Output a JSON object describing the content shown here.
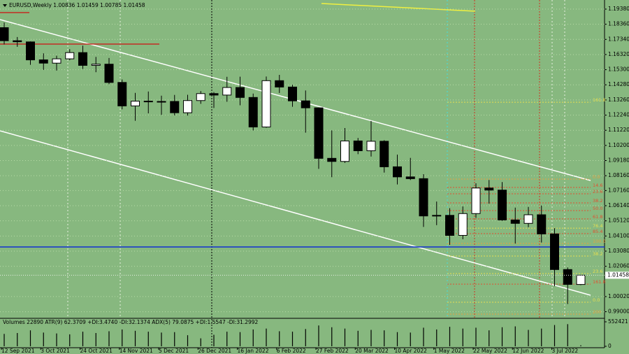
{
  "chart_data": {
    "type": "candlestick",
    "title": "EURUSD,Weekly  1.00836 1.01459 1.00785 1.01458",
    "categories": [
      "12 Sep 2021",
      null,
      null,
      "3 Oct 2021",
      null,
      null,
      "24 Oct 2021",
      null,
      null,
      "14 Nov 2021",
      null,
      null,
      "5 Dec 2021",
      null,
      null,
      "26 Dec 2021",
      null,
      null,
      "16 Jan 2022",
      null,
      null,
      "6 Feb 2022",
      null,
      null,
      "27 Feb 2022",
      null,
      null,
      "20 Mar 2022",
      null,
      null,
      "10 Apr 2022",
      null,
      null,
      "1 May 2022",
      null,
      null,
      "22 May 2022",
      null,
      null,
      "12 Jun 2022",
      null,
      null,
      "3 Jul 2022",
      null,
      null
    ],
    "open": [
      1.1813,
      1.1725,
      1.1717,
      1.1596,
      1.1574,
      1.1603,
      1.1645,
      1.1559,
      1.1567,
      1.1444,
      1.1286,
      1.1318,
      1.1314,
      1.1316,
      1.124,
      1.1322,
      1.1369,
      1.1359,
      1.141,
      1.1343,
      1.1144,
      1.1456,
      1.1413,
      1.132,
      1.1273,
      1.0933,
      1.0912,
      1.105,
      1.0984,
      1.1048,
      1.0876,
      1.0808,
      1.0796,
      1.0545,
      1.0549,
      1.0414,
      1.0561,
      1.0733,
      1.0719,
      1.0518,
      1.0495,
      1.0553,
      1.0424,
      1.0184,
      1.00836
    ],
    "high": [
      1.1847,
      1.175,
      1.172,
      1.164,
      1.1624,
      1.1668,
      1.1692,
      1.1616,
      1.1609,
      1.1464,
      1.1374,
      1.1383,
      1.1355,
      1.136,
      1.1361,
      1.1386,
      1.1379,
      1.1482,
      1.1483,
      1.1369,
      1.1484,
      1.1495,
      1.1428,
      1.139,
      1.1275,
      1.1121,
      1.1137,
      1.107,
      1.1185,
      1.1055,
      1.0958,
      1.0936,
      1.0826,
      1.0642,
      1.0597,
      1.0609,
      1.0765,
      1.0787,
      1.0773,
      1.0601,
      1.0606,
      1.0615,
      1.0463,
      1.0198,
      1.01459
    ],
    "low": [
      1.17,
      1.1684,
      1.1563,
      1.1529,
      1.1524,
      1.1594,
      1.1535,
      1.1513,
      1.1432,
      1.1263,
      1.1186,
      1.1236,
      1.1226,
      1.1222,
      1.1221,
      1.13,
      1.1272,
      1.1314,
      1.129,
      1.1121,
      1.1139,
      1.1373,
      1.128,
      1.1106,
      1.0862,
      1.0806,
      1.0902,
      1.0961,
      1.0945,
      1.0837,
      1.0757,
      1.0787,
      1.0471,
      1.0483,
      1.035,
      1.0388,
      1.0532,
      1.0628,
      1.0513,
      1.0359,
      1.0469,
      1.0366,
      1.0072,
      0.9952,
      1.00785
    ],
    "close": [
      1.1725,
      1.1718,
      1.1596,
      1.1574,
      1.1603,
      1.1645,
      1.1559,
      1.1567,
      1.1444,
      1.1286,
      1.1318,
      1.1314,
      1.1316,
      1.124,
      1.1322,
      1.1369,
      1.1359,
      1.141,
      1.1343,
      1.1144,
      1.1456,
      1.1413,
      1.132,
      1.1273,
      1.0933,
      1.0912,
      1.105,
      1.0984,
      1.1048,
      1.0876,
      1.0808,
      1.0796,
      1.0545,
      1.0549,
      1.0414,
      1.0561,
      1.0733,
      1.0719,
      1.0518,
      1.0495,
      1.0553,
      1.0424,
      1.0184,
      1.0084,
      1.01458
    ],
    "ylim": [
      0.98556,
      1.19992
    ],
    "yticks": [
      {
        "value": 1.1938,
        "label": "1.19380"
      },
      {
        "value": 1.1836,
        "label": "1.18360"
      },
      {
        "value": 1.1734,
        "label": "1.17340"
      },
      {
        "value": 1.1632,
        "label": "1.16320"
      },
      {
        "value": 1.153,
        "label": "1.15300"
      },
      {
        "value": 1.1428,
        "label": "1.14280"
      },
      {
        "value": 1.1326,
        "label": "1.13260"
      },
      {
        "value": 1.1224,
        "label": "1.12240"
      },
      {
        "value": 1.1122,
        "label": "1.11220"
      },
      {
        "value": 1.102,
        "label": "1.10200"
      },
      {
        "value": 1.0918,
        "label": "1.09180"
      },
      {
        "value": 1.0816,
        "label": "1.08160"
      },
      {
        "value": 1.0716,
        "label": "1.07160"
      },
      {
        "value": 1.0614,
        "label": "1.06140"
      },
      {
        "value": 1.0512,
        "label": "1.05120"
      },
      {
        "value": 1.041,
        "label": "1.04100"
      },
      {
        "value": 1.0308,
        "label": "1.03080"
      },
      {
        "value": 1.0206,
        "label": "1.02060"
      },
      {
        "value": 1.0002,
        "label": "1.00020"
      },
      {
        "value": 0.99,
        "label": "0.99000"
      }
    ],
    "grid": true,
    "current_price": {
      "value": 1.01458,
      "label": "1.01458"
    },
    "support_line": 1.0336,
    "fib_levels": [
      {
        "label": "161.8",
        "price": 1.1311,
        "color": "#e8e050"
      },
      {
        "label": "0.0",
        "price": 1.0793,
        "color": "#e8a040"
      },
      {
        "label": "14.6",
        "price": 1.0737,
        "color": "#e05030"
      },
      {
        "label": "23.6",
        "price": 1.0694,
        "color": "#e05030"
      },
      {
        "label": "38.2",
        "price": 1.0633,
        "color": "#e05030"
      },
      {
        "label": "50.0",
        "price": 1.0581,
        "color": "#e05030"
      },
      {
        "label": "61.8",
        "price": 1.0525,
        "color": "#e05030"
      },
      {
        "label": "76.4",
        "price": 1.0463,
        "color": "#e8e050"
      },
      {
        "label": "85.4",
        "price": 1.0426,
        "color": "#e05030"
      },
      {
        "label": "100.0",
        "price": 1.036,
        "color": "#e8a040"
      },
      {
        "label": "38.2",
        "price": 1.0275,
        "color": "#e8e050"
      },
      {
        "label": "23.6",
        "price": 1.0157,
        "color": "#e8e050"
      },
      {
        "label": "161.8",
        "price": 1.0086,
        "color": "#e05030"
      },
      {
        "label": "0.0",
        "price": 0.9964,
        "color": "#e8e050"
      },
      {
        "label": "200",
        "price": 0.9884,
        "color": "#e8a040"
      }
    ],
    "volume": {
      "title": "Volumes 22890 ATR(9) 62.3709 +DI:3.4740 -DI:32.1374 ADX(5) 79.0875 +DI:1.5547 -DI:31.2992",
      "values": [
        280000,
        300000,
        360000,
        310000,
        290000,
        270000,
        330000,
        300000,
        340000,
        380000,
        350000,
        330000,
        310000,
        320000,
        250000,
        180000,
        260000,
        330000,
        320000,
        380000,
        400000,
        340000,
        330000,
        390000,
        470000,
        430000,
        400000,
        350000,
        370000,
        360000,
        320000,
        310000,
        420000,
        380000,
        440000,
        400000,
        420000,
        360000,
        430000,
        450000,
        370000,
        400000,
        480000,
        500000,
        22890
      ],
      "ylim": [
        0,
        552421
      ],
      "yticks": [
        0,
        552421
      ]
    }
  }
}
